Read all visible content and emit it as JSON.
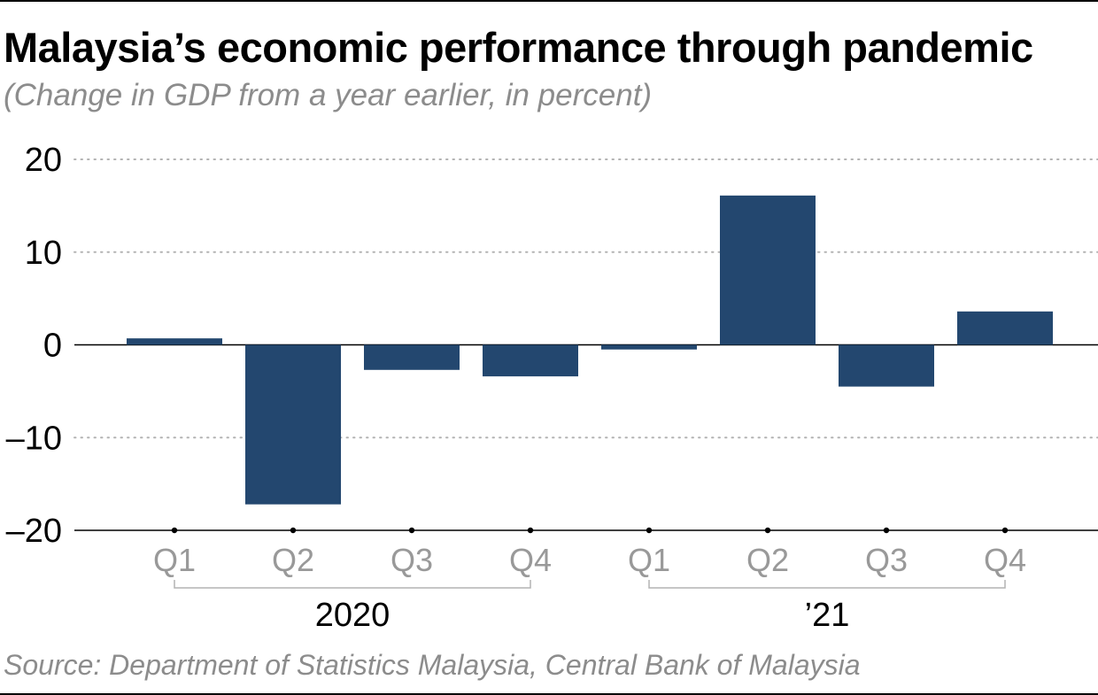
{
  "title": "Malaysia’s economic performance through pandemic",
  "subtitle": "(Change in GDP from a year earlier, in percent)",
  "source": "Source: Department of Statistics Malaysia, Central Bank of Malaysia",
  "colors": {
    "bar": "#23476f",
    "grid": "#b3b3b3",
    "axis": "#000000",
    "category_text": "#999999",
    "bracket": "#b3b3b3"
  },
  "chart_data": {
    "type": "bar",
    "categories": [
      "Q1",
      "Q2",
      "Q3",
      "Q4",
      "Q1",
      "Q2",
      "Q3",
      "Q4"
    ],
    "groups": [
      {
        "label": "2020",
        "categories": [
          "Q1",
          "Q2",
          "Q3",
          "Q4"
        ]
      },
      {
        "label": "’21",
        "categories": [
          "Q1",
          "Q2",
          "Q3",
          "Q4"
        ]
      }
    ],
    "values": [
      0.7,
      -17.2,
      -2.7,
      -3.4,
      -0.5,
      16.1,
      -4.5,
      3.6
    ],
    "yticks": [
      20,
      10,
      0,
      -10,
      -20
    ],
    "ytick_labels": [
      "20",
      "10",
      "0",
      "–10",
      "–20"
    ],
    "ylim": [
      -20,
      20
    ],
    "grid": "dotted horizontal"
  }
}
